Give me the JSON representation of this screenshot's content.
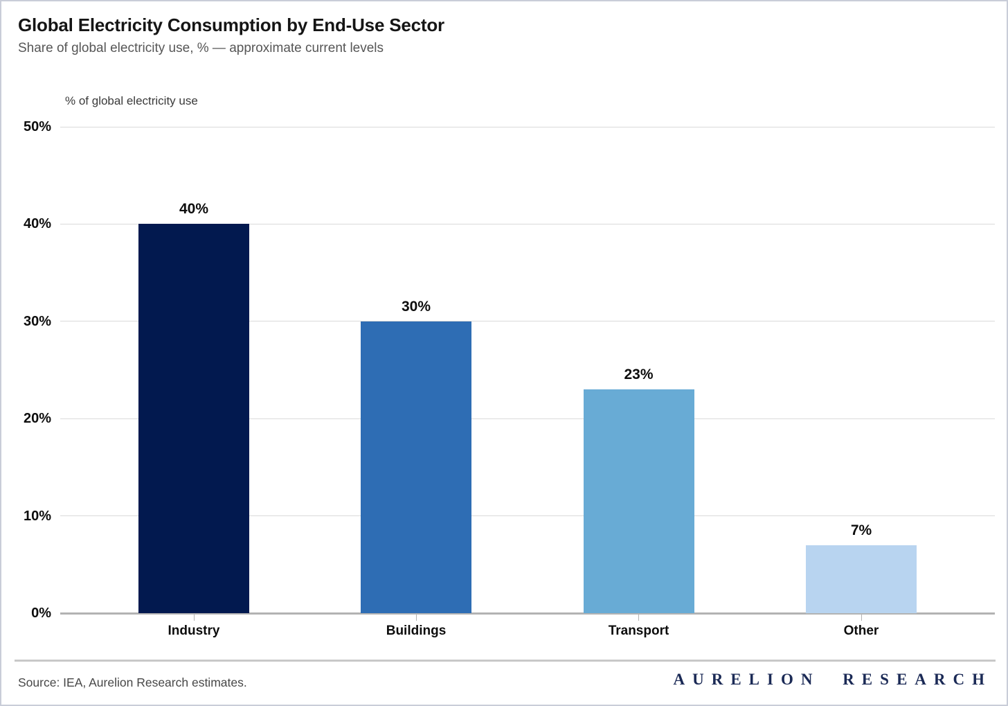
{
  "page": {
    "title": "Global Electricity Consumption by End-Use Sector",
    "subtitle": "Share of global electricity use, % — approximate current levels",
    "source": "Source: IEA, Aurelion Research estimates.",
    "brand": "AURELION RESEARCH",
    "brand_color": "#1b2a56"
  },
  "chart_data": {
    "type": "bar",
    "title": "Global Electricity Consumption by End-Use Sector",
    "subtitle": "Share of global electricity use, % — approximate current levels",
    "axis_note": "% of global electricity use",
    "ylabel": "% of global electricity use",
    "xlabel": "",
    "categories": [
      "Industry",
      "Buildings",
      "Transport",
      "Other"
    ],
    "values": [
      40,
      30,
      23,
      7
    ],
    "value_labels": [
      "40%",
      "30%",
      "23%",
      "7%"
    ],
    "bar_colors": [
      "#02194f",
      "#2e6db4",
      "#68abd5",
      "#b8d4f0"
    ],
    "ylim": [
      0,
      50
    ],
    "yticks": [
      0,
      10,
      20,
      30,
      40,
      50
    ],
    "ytick_labels": [
      "0%",
      "10%",
      "20%",
      "30%",
      "40%",
      "50%"
    ],
    "grid": true,
    "legend": false,
    "grid_color": "#dadada",
    "axis_color": "#b3b3b3"
  }
}
